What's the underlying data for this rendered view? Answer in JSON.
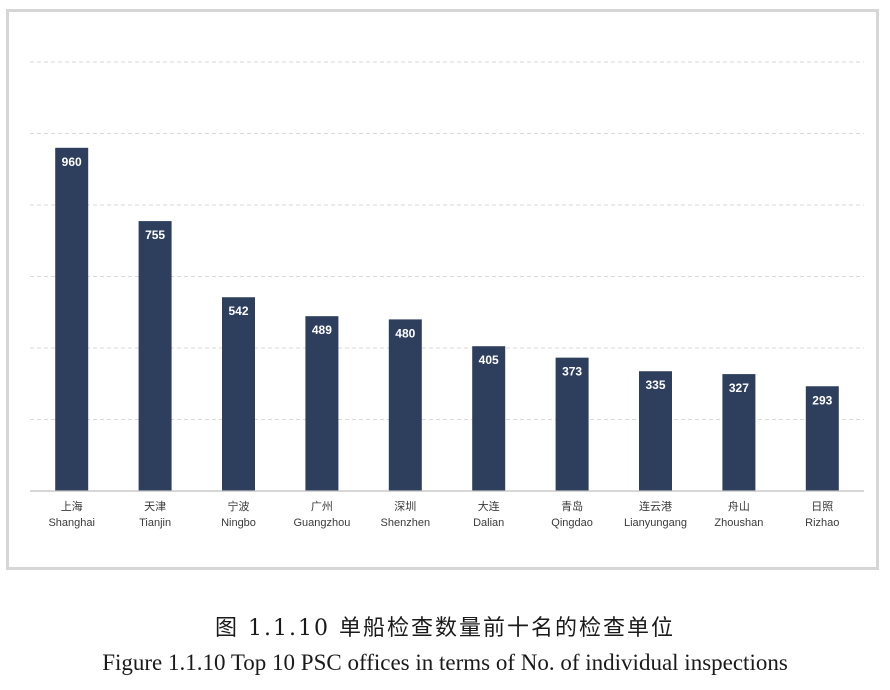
{
  "chart_data": {
    "type": "bar",
    "categories": [
      {
        "cn": "上海",
        "en": "Shanghai"
      },
      {
        "cn": "天津",
        "en": "Tianjin"
      },
      {
        "cn": "宁波",
        "en": "Ningbo"
      },
      {
        "cn": "广州",
        "en": "Guangzhou"
      },
      {
        "cn": "深圳",
        "en": "Shenzhen"
      },
      {
        "cn": "大连",
        "en": "Dalian"
      },
      {
        "cn": "青岛",
        "en": "Qingdao"
      },
      {
        "cn": "连云港",
        "en": "Lianyungang"
      },
      {
        "cn": "舟山",
        "en": "Zhoushan"
      },
      {
        "cn": "日照",
        "en": "Rizhao"
      }
    ],
    "values": [
      960,
      755,
      542,
      489,
      480,
      405,
      373,
      335,
      327,
      293
    ],
    "ylim": [
      0,
      1200
    ],
    "gridline_step": 200,
    "grid": true,
    "gridline_style": "dashed",
    "data_labels": true,
    "bar_color": "#2e3f5e",
    "grid_color": "#d9d9d9",
    "axis_color": "#bfbfbf"
  },
  "captions": {
    "cn": "图 1.1.10 单船检查数量前十名的检查单位",
    "en": "Figure 1.1.10 Top 10 PSC offices in terms of No. of individual inspections"
  }
}
